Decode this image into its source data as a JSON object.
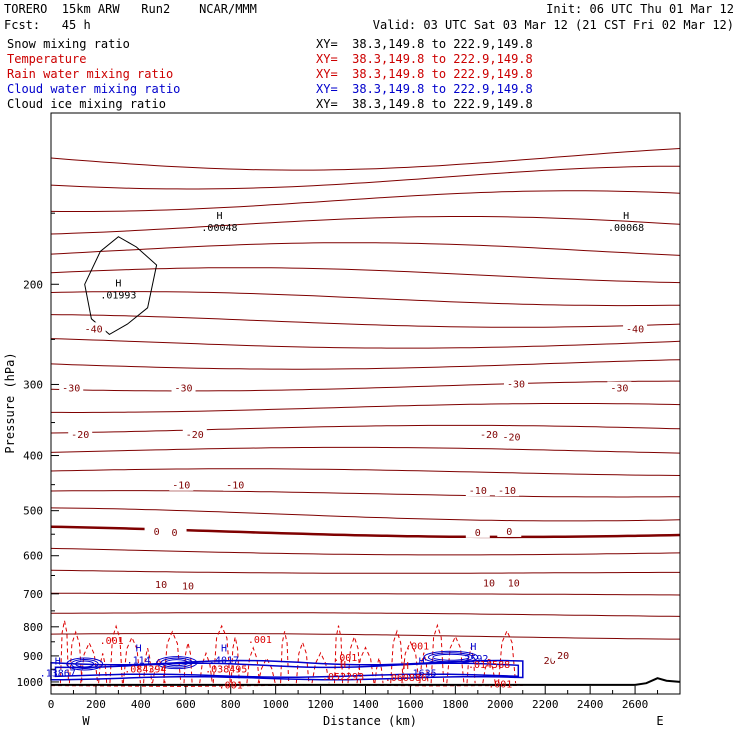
{
  "header": {
    "left_line1": "TORERO  15km ARW   Run2    NCAR/MMM",
    "left_line2": "Fcst:   45 h",
    "init": "Init: 06 UTC Thu 01 Mar 12",
    "valid": "Valid: 03 UTC Sat 03 Mar 12 (21 CST Fri 02 Mar 12)",
    "fields": [
      {
        "name": "Snow mixing ratio",
        "color": "#000000",
        "xy": "XY=  38.3,149.8 to 222.9,149.8",
        "xy_color": "#000000"
      },
      {
        "name": "Temperature",
        "color": "#cc0000",
        "xy": "XY=  38.3,149.8 to 222.9,149.8",
        "xy_color": "#cc0000"
      },
      {
        "name": "Rain water mixing ratio",
        "color": "#cc0000",
        "xy": "XY=  38.3,149.8 to 222.9,149.8",
        "xy_color": "#cc0000"
      },
      {
        "name": "Cloud water mixing ratio",
        "color": "#0000cc",
        "xy": "XY=  38.3,149.8 to 222.9,149.8",
        "xy_color": "#0000cc"
      },
      {
        "name": "Cloud ice mixing ratio",
        "color": "#000000",
        "xy": "XY=  38.3,149.8 to 222.9,149.8",
        "xy_color": "#000000"
      }
    ]
  },
  "colors": {
    "temperature": "#7f0000",
    "rain": "#dd0000",
    "cloud_water": "#0000cc",
    "snow": "#000000",
    "terrain": "#000000"
  },
  "chart_data": {
    "type": "line",
    "xlabel": "Distance (km)",
    "ylabel": "Pressure (hPa)",
    "x_ticks": [
      "0",
      "200",
      "400",
      "600",
      "800",
      "1000",
      "1200",
      "1400",
      "1600",
      "1800",
      "2000",
      "2200",
      "2400",
      "2600"
    ],
    "y_ticks": [
      "200",
      "300",
      "400",
      "500",
      "600",
      "700",
      "800",
      "900",
      "1000"
    ],
    "xlim": [
      0,
      2800
    ],
    "ylim": [
      1050,
      100
    ],
    "y_scale": "log",
    "endpoints": {
      "left": "W",
      "right": "E"
    },
    "temperature_labels": [
      {
        "text": "-40",
        "x": 190,
        "p": 240
      },
      {
        "text": "-40",
        "x": 2600,
        "p": 240
      },
      {
        "text": "-30",
        "x": 90,
        "p": 305
      },
      {
        "text": "-30",
        "x": 590,
        "p": 305
      },
      {
        "text": "-30",
        "x": 2070,
        "p": 300
      },
      {
        "text": "-30",
        "x": 2530,
        "p": 305
      },
      {
        "text": "-20",
        "x": 130,
        "p": 368
      },
      {
        "text": "-20",
        "x": 640,
        "p": 368
      },
      {
        "text": "-20",
        "x": 1950,
        "p": 368
      },
      {
        "text": "-20",
        "x": 2050,
        "p": 372
      },
      {
        "text": "-10",
        "x": 580,
        "p": 452
      },
      {
        "text": "-10",
        "x": 820,
        "p": 452
      },
      {
        "text": "-10",
        "x": 1900,
        "p": 462
      },
      {
        "text": "-10",
        "x": 2030,
        "p": 462
      },
      {
        "text": "0",
        "x": 470,
        "p": 545
      },
      {
        "text": "0",
        "x": 550,
        "p": 547
      },
      {
        "text": "0",
        "x": 1900,
        "p": 547
      },
      {
        "text": "0",
        "x": 2040,
        "p": 545
      },
      {
        "text": "10",
        "x": 490,
        "p": 675
      },
      {
        "text": "10",
        "x": 610,
        "p": 680
      },
      {
        "text": "10",
        "x": 1950,
        "p": 672
      },
      {
        "text": "10",
        "x": 2060,
        "p": 672
      },
      {
        "text": "20",
        "x": 2220,
        "p": 918
      },
      {
        "text": "20",
        "x": 2280,
        "p": 900
      }
    ],
    "extrema_labels": [
      {
        "mark": "H",
        "value": ".00048",
        "x": 750,
        "p": 160,
        "color": "snow"
      },
      {
        "mark": "H",
        "value": ".00068",
        "x": 2560,
        "p": 160,
        "color": "snow"
      },
      {
        "mark": "H",
        "value": ".01993",
        "x": 300,
        "p": 210,
        "color": "snow"
      },
      {
        "mark": "",
        "value": ".001",
        "x": 270,
        "p": 850,
        "color": "rain"
      },
      {
        "mark": "",
        "value": ".001",
        "x": 930,
        "p": 848,
        "color": "rain"
      },
      {
        "mark": "",
        "value": ".001",
        "x": 1630,
        "p": 870,
        "color": "rain"
      },
      {
        "mark": "",
        "value": ".001",
        "x": 1310,
        "p": 912,
        "color": "rain"
      },
      {
        "mark": "H",
        "value": ".2592",
        "x": 1880,
        "p": 915,
        "color": "cloud_water"
      },
      {
        "mark": "",
        "value": ".014588",
        "x": 1950,
        "p": 937,
        "color": "rain"
      },
      {
        "mark": "H",
        "value": ".114",
        "x": 390,
        "p": 920,
        "color": "cloud_water"
      },
      {
        "mark": "",
        "value": ".084394",
        "x": 420,
        "p": 955,
        "color": "rain"
      },
      {
        "mark": "H",
        "value": ".4017",
        "x": 770,
        "p": 920,
        "color": "cloud_water"
      },
      {
        "mark": "",
        "value": ".038495",
        "x": 780,
        "p": 955,
        "color": "rain"
      },
      {
        "mark": "H",
        "value": ".13867",
        "x": 30,
        "p": 970,
        "color": "cloud_water"
      },
      {
        "mark": "H",
        "value": ".052293",
        "x": 1300,
        "p": 985,
        "color": "rain"
      },
      {
        "mark": "H",
        "value": ".1635",
        "x": 1650,
        "p": 970,
        "color": "cloud_water"
      },
      {
        "mark": "H",
        "value": ".060886",
        "x": 1580,
        "p": 988,
        "color": "rain"
      },
      {
        "mark": "",
        "value": ".001",
        "x": 800,
        "p": 1018,
        "color": "rain"
      },
      {
        "mark": "",
        "value": ".001",
        "x": 2000,
        "p": 1015,
        "color": "rain"
      }
    ],
    "grid": false,
    "legend": "top-left"
  }
}
